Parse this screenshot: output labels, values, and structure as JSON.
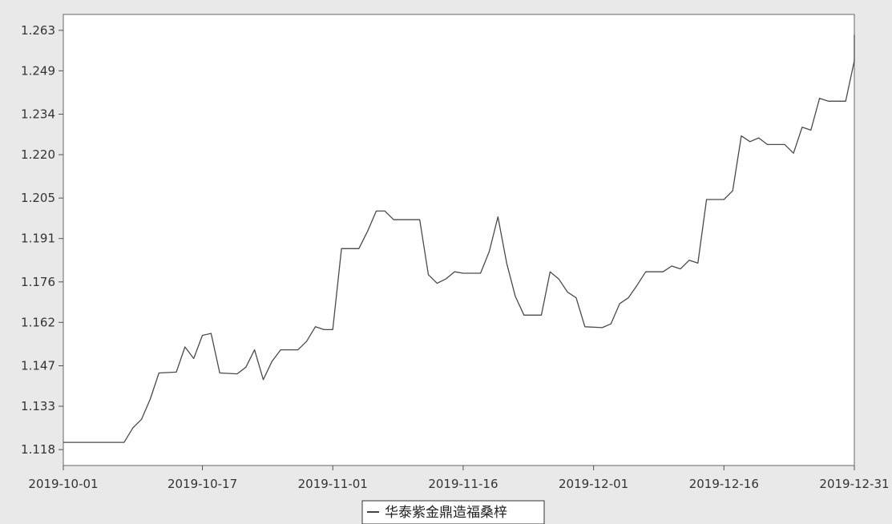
{
  "chart_data": {
    "type": "line",
    "title": "",
    "xlabel": "",
    "ylabel": "",
    "x_ticks": [
      "2019-10-01",
      "2019-10-17",
      "2019-11-01",
      "2019-11-16",
      "2019-12-01",
      "2019-12-16",
      "2019-12-31"
    ],
    "y_ticks": [
      "1.118",
      "1.133",
      "1.147",
      "1.162",
      "1.176",
      "1.191",
      "1.205",
      "1.220",
      "1.234",
      "1.249",
      "1.263"
    ],
    "xlim": [
      "2019-10-01",
      "2019-12-31"
    ],
    "ylim": [
      1.1125,
      1.2685
    ],
    "grid": false,
    "legend_position": "bottom-center",
    "colors": {
      "line": "#4a4a4a",
      "plot_bg": "#ffffff",
      "page_bg": "#e9e9e9",
      "axis": "#555555"
    },
    "series": [
      {
        "name": "华泰紫金鼎造福桑梓",
        "points": [
          [
            "2019-10-01",
            1.1205
          ],
          [
            "2019-10-08",
            1.1205
          ],
          [
            "2019-10-09",
            1.1255
          ],
          [
            "2019-10-10",
            1.1285
          ],
          [
            "2019-10-11",
            1.1355
          ],
          [
            "2019-10-12",
            1.1445
          ],
          [
            "2019-10-14",
            1.1448
          ],
          [
            "2019-10-15",
            1.1535
          ],
          [
            "2019-10-16",
            1.1495
          ],
          [
            "2019-10-17",
            1.1575
          ],
          [
            "2019-10-18",
            1.1582
          ],
          [
            "2019-10-19",
            1.1445
          ],
          [
            "2019-10-21",
            1.1442
          ],
          [
            "2019-10-22",
            1.1465
          ],
          [
            "2019-10-23",
            1.1525
          ],
          [
            "2019-10-24",
            1.1422
          ],
          [
            "2019-10-25",
            1.1485
          ],
          [
            "2019-10-26",
            1.1525
          ],
          [
            "2019-10-28",
            1.1525
          ],
          [
            "2019-10-29",
            1.1555
          ],
          [
            "2019-10-30",
            1.1605
          ],
          [
            "2019-10-31",
            1.1595
          ],
          [
            "2019-11-01",
            1.1595
          ],
          [
            "2019-11-02",
            1.1875
          ],
          [
            "2019-11-04",
            1.1875
          ],
          [
            "2019-11-05",
            1.1935
          ],
          [
            "2019-11-06",
            1.2005
          ],
          [
            "2019-11-07",
            1.2005
          ],
          [
            "2019-11-08",
            1.1975
          ],
          [
            "2019-11-10",
            1.1975
          ],
          [
            "2019-11-11",
            1.1975
          ],
          [
            "2019-11-12",
            1.1785
          ],
          [
            "2019-11-13",
            1.1755
          ],
          [
            "2019-11-14",
            1.177
          ],
          [
            "2019-11-15",
            1.1795
          ],
          [
            "2019-11-16",
            1.179
          ],
          [
            "2019-11-18",
            1.179
          ],
          [
            "2019-11-19",
            1.1865
          ],
          [
            "2019-11-20",
            1.1985
          ],
          [
            "2019-11-21",
            1.1825
          ],
          [
            "2019-11-22",
            1.171
          ],
          [
            "2019-11-23",
            1.1645
          ],
          [
            "2019-11-25",
            1.1645
          ],
          [
            "2019-11-26",
            1.1795
          ],
          [
            "2019-11-27",
            1.177
          ],
          [
            "2019-11-28",
            1.1725
          ],
          [
            "2019-11-29",
            1.1705
          ],
          [
            "2019-11-30",
            1.1605
          ],
          [
            "2019-12-02",
            1.1602
          ],
          [
            "2019-12-03",
            1.1615
          ],
          [
            "2019-12-04",
            1.1685
          ],
          [
            "2019-12-05",
            1.1705
          ],
          [
            "2019-12-06",
            1.1748
          ],
          [
            "2019-12-07",
            1.1795
          ],
          [
            "2019-12-09",
            1.1795
          ],
          [
            "2019-12-10",
            1.1815
          ],
          [
            "2019-12-11",
            1.1805
          ],
          [
            "2019-12-12",
            1.1835
          ],
          [
            "2019-12-13",
            1.1825
          ],
          [
            "2019-12-14",
            1.2045
          ],
          [
            "2019-12-16",
            1.2045
          ],
          [
            "2019-12-17",
            1.2075
          ],
          [
            "2019-12-18",
            1.2265
          ],
          [
            "2019-12-19",
            1.2245
          ],
          [
            "2019-12-20",
            1.2258
          ],
          [
            "2019-12-21",
            1.2235
          ],
          [
            "2019-12-23",
            1.2235
          ],
          [
            "2019-12-24",
            1.2205
          ],
          [
            "2019-12-25",
            1.2295
          ],
          [
            "2019-12-26",
            1.2285
          ],
          [
            "2019-12-27",
            1.2395
          ],
          [
            "2019-12-28",
            1.2385
          ],
          [
            "2019-12-30",
            1.2385
          ],
          [
            "2019-12-31",
            1.2525
          ],
          [
            "2020-01-01",
            1.2615
          ]
        ]
      }
    ]
  }
}
